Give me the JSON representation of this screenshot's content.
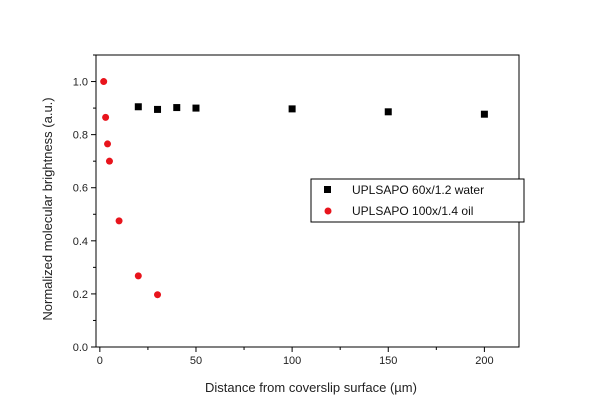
{
  "chart_data": {
    "type": "scatter",
    "title": "",
    "xlabel": "Distance from coverslip surface (µm)",
    "ylabel": "Normalized molecular brightness (a.u.)",
    "xlim": [
      -2,
      218
    ],
    "ylim": [
      0,
      1.1
    ],
    "xticks": [
      0,
      50,
      100,
      150,
      200
    ],
    "yticks": [
      0.0,
      0.2,
      0.4,
      0.6,
      0.8,
      1.0
    ],
    "ytick_labels": [
      "0.0",
      "0.2",
      "0.4",
      "0.6",
      "0.8",
      "1.0"
    ],
    "grid": false,
    "legend_position": "right",
    "series": [
      {
        "name": "UPLSAPO 60x/1.2 water",
        "marker": "square",
        "color": "#000000",
        "x": [
          20,
          30,
          40,
          50,
          100,
          150,
          200
        ],
        "y": [
          0.905,
          0.895,
          0.902,
          0.9,
          0.897,
          0.886,
          0.877
        ]
      },
      {
        "name": "UPLSAPO 100x/1.4 oil",
        "marker": "circle",
        "color": "#e8141c",
        "x": [
          2,
          3,
          4,
          5,
          10,
          20,
          30
        ],
        "y": [
          1.0,
          0.865,
          0.765,
          0.7,
          0.475,
          0.268,
          0.197
        ]
      }
    ]
  }
}
